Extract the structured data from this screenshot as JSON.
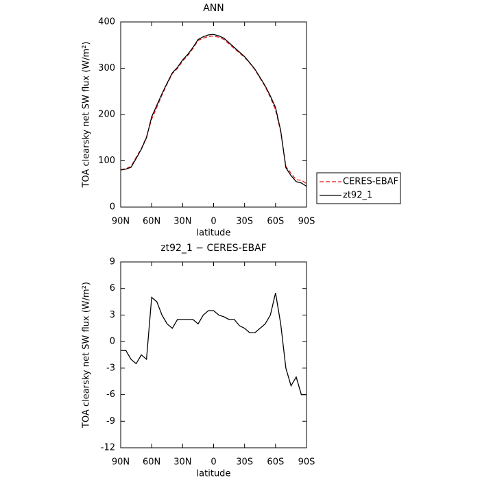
{
  "chart_data": [
    {
      "type": "line",
      "title": "ANN",
      "xlabel": "latitude",
      "ylabel": "TOA clearsky net SW flux (W/m²)",
      "x": [
        90,
        85,
        80,
        75,
        70,
        65,
        60,
        55,
        50,
        45,
        40,
        35,
        30,
        25,
        20,
        15,
        10,
        5,
        0,
        -5,
        -10,
        -15,
        -20,
        -25,
        -30,
        -35,
        -40,
        -45,
        -50,
        -55,
        -60,
        -65,
        -70,
        -75,
        -80,
        -85,
        -90
      ],
      "xlim": [
        90,
        -90
      ],
      "xticks": [
        {
          "value": 90,
          "label": "90N"
        },
        {
          "value": 60,
          "label": "60N"
        },
        {
          "value": 30,
          "label": "30N"
        },
        0,
        {
          "value": -30,
          "label": "30S"
        },
        {
          "value": -60,
          "label": "60S"
        },
        {
          "value": -90,
          "label": "90S"
        }
      ],
      "ylim": [
        0,
        400
      ],
      "yticks": [
        0,
        100,
        200,
        300,
        400
      ],
      "legend": "right",
      "series": [
        {
          "name": "CERES-EBAF",
          "color": "#e41a1c",
          "style": "dashed",
          "values": [
            81,
            83,
            88,
            107.5,
            126.5,
            152,
            190,
            215.5,
            242,
            266,
            288.5,
            299.5,
            315.5,
            327.5,
            342.5,
            360,
            365,
            368.5,
            369.5,
            367,
            362.2,
            352.5,
            342.5,
            333.2,
            323.5,
            311,
            297,
            278.5,
            260,
            237,
            209.5,
            163,
            88,
            73,
            59,
            58,
            51
          ]
        },
        {
          "name": "zt92_1",
          "color": "#000000",
          "style": "solid",
          "values": [
            80,
            82,
            86,
            105,
            125,
            150,
            195,
            220,
            245,
            268,
            290,
            302,
            318,
            330,
            345,
            362,
            368,
            372,
            373,
            370,
            365,
            355,
            345,
            335,
            325,
            312,
            298,
            280,
            262,
            240,
            215,
            165,
            85,
            68,
            55,
            52,
            45
          ]
        }
      ]
    },
    {
      "type": "line",
      "title": "zt92_1 − CERES-EBAF",
      "xlabel": "latitude",
      "ylabel": "TOA clearsky net SW flux (W/m²)",
      "x": [
        90,
        85,
        80,
        75,
        70,
        65,
        60,
        55,
        50,
        45,
        40,
        35,
        30,
        25,
        20,
        15,
        10,
        5,
        0,
        -5,
        -10,
        -15,
        -20,
        -25,
        -30,
        -35,
        -40,
        -45,
        -50,
        -55,
        -60,
        -65,
        -70,
        -75,
        -80,
        -85,
        -90
      ],
      "xlim": [
        90,
        -90
      ],
      "xticks": [
        {
          "value": 90,
          "label": "90N"
        },
        {
          "value": 60,
          "label": "60N"
        },
        {
          "value": 30,
          "label": "30N"
        },
        0,
        {
          "value": -30,
          "label": "30S"
        },
        {
          "value": -60,
          "label": "60S"
        },
        {
          "value": -90,
          "label": "90S"
        }
      ],
      "ylim": [
        -12,
        9
      ],
      "yticks": [
        -12,
        -9,
        -6,
        -3,
        0,
        3,
        6,
        9
      ],
      "series": [
        {
          "color": "#000000",
          "style": "solid",
          "values": [
            -1,
            -1,
            -2,
            -2.5,
            -1.5,
            -2,
            5,
            4.5,
            3,
            2,
            1.5,
            2.5,
            2.5,
            2.5,
            2.5,
            2,
            3,
            3.5,
            3.5,
            3,
            2.8,
            2.5,
            2.5,
            1.8,
            1.5,
            1,
            1,
            1.5,
            2,
            3,
            5.5,
            2,
            -3,
            -5,
            -4,
            -6,
            -6
          ]
        }
      ]
    }
  ]
}
